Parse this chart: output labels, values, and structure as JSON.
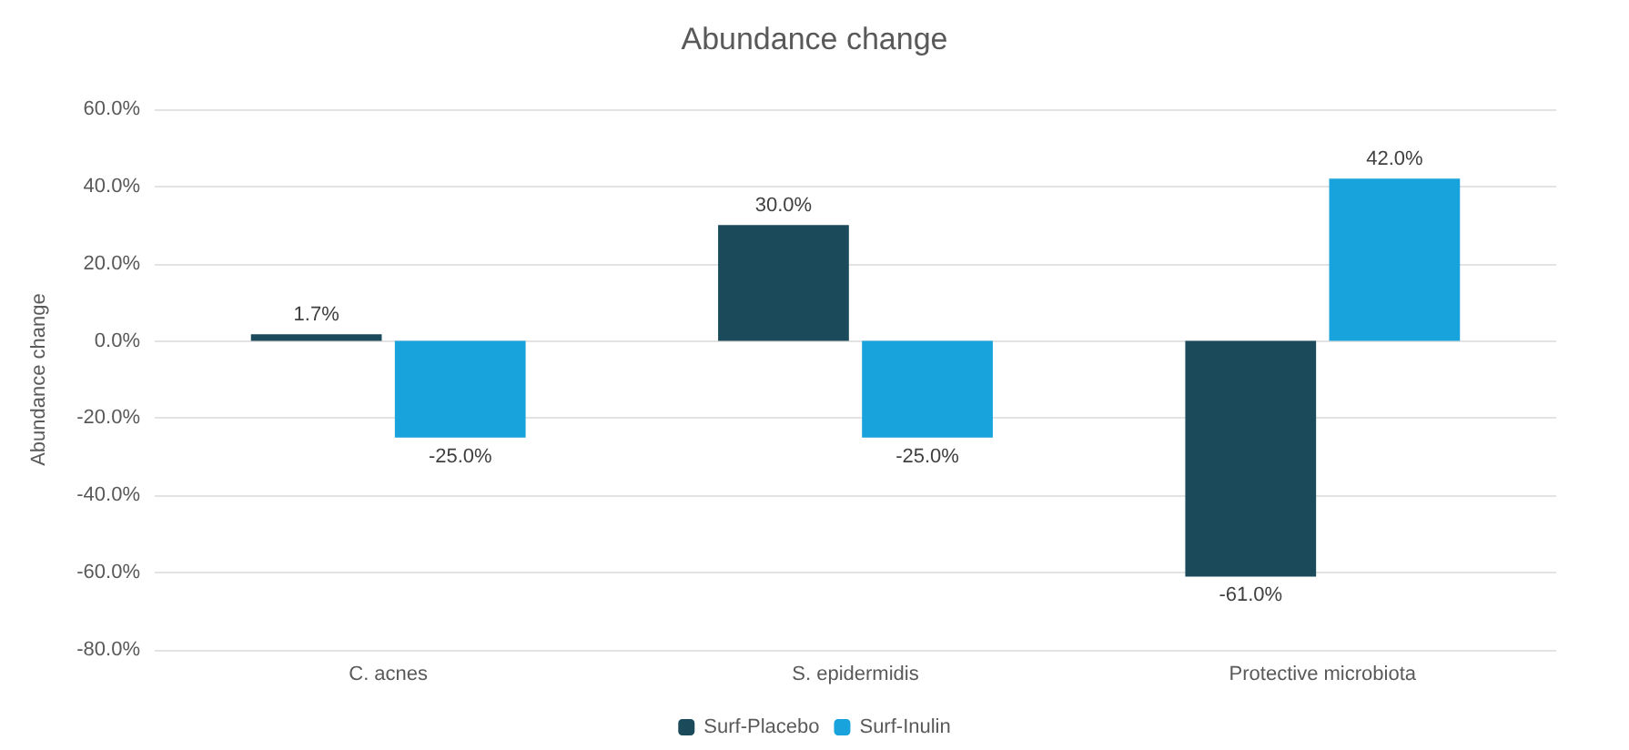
{
  "chart_data": {
    "type": "bar",
    "title": "Abundance change",
    "ylabel": "Abundance change",
    "categories": [
      "C. acnes",
      "S. epidermidis",
      "Protective microbiota"
    ],
    "series": [
      {
        "name": "Surf-Placebo",
        "color": "#1b4b5a",
        "values": [
          1.7,
          30,
          -61
        ],
        "value_labels": [
          "1.7%",
          "30.0%",
          "-61.0%"
        ]
      },
      {
        "name": "Surf-Inulin",
        "color": "#19a3dc",
        "values": [
          -25,
          -25,
          42
        ],
        "value_labels": [
          "-25.0%",
          "-25.0%",
          "42.0%"
        ]
      }
    ],
    "ylim": [
      -80,
      60
    ],
    "yticks": [
      {
        "value": -80,
        "label": "-80.0%"
      },
      {
        "value": -60,
        "label": "-60.0%"
      },
      {
        "value": -40,
        "label": "-40.0%"
      },
      {
        "value": -20,
        "label": "-20.0%"
      },
      {
        "value": 0,
        "label": "0.0%"
      },
      {
        "value": 20,
        "label": "20.0%"
      },
      {
        "value": 40,
        "label": "40.0%"
      },
      {
        "value": 60,
        "label": "60.0%"
      }
    ],
    "grid": true,
    "legend": "bottom"
  }
}
